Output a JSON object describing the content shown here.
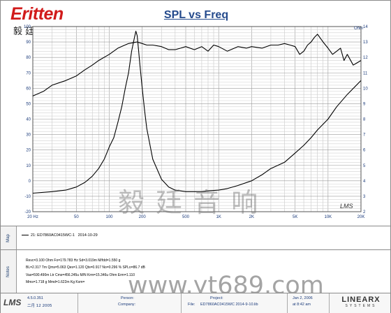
{
  "brand": {
    "logo_text": "ritten",
    "logo_initial": "E",
    "chinese_name": "毅 廷 音 响",
    "watermark_cn": "毅 廷 音 响",
    "watermark_url": "www.yt689.com"
  },
  "chart_data": {
    "type": "line",
    "title": "SPL vs Freq",
    "xlabel": "",
    "ylabel_left": "",
    "ylabel_right": "Ohm",
    "x_scale": "log",
    "xlim": [
      20,
      20000
    ],
    "ylim_left": [
      -20,
      100
    ],
    "ylim_right": [
      2,
      14
    ],
    "x_tick_labels": [
      "20 Hz",
      "50",
      "100",
      "200",
      "500",
      "1K",
      "2K",
      "5K",
      "10K",
      "20K"
    ],
    "x_tick_values": [
      20,
      50,
      100,
      200,
      500,
      1000,
      2000,
      5000,
      10000,
      20000
    ],
    "y_left_ticks": [
      -20,
      -10,
      0,
      10,
      20,
      30,
      40,
      50,
      60,
      70,
      80,
      90,
      100
    ],
    "y_right_ticks": [
      2,
      3,
      4,
      5,
      6,
      7,
      8,
      9,
      10,
      11,
      12,
      13,
      14
    ],
    "grid": true,
    "series": [
      {
        "axis": "left",
        "color": "#000000",
        "x": [
          20,
          25,
          30,
          40,
          50,
          60,
          70,
          80,
          100,
          120,
          150,
          180,
          200,
          220,
          250,
          300,
          350,
          400,
          450,
          500,
          600,
          700,
          800,
          900,
          1000,
          1200,
          1500,
          1800,
          2000,
          2500,
          3000,
          3500,
          4000,
          4500,
          5000,
          5500,
          6000,
          6500,
          7000,
          7500,
          8000,
          9000,
          10000,
          11000,
          12000,
          13000,
          14000,
          15000,
          17000,
          20000
        ],
        "y": [
          55,
          58,
          62,
          65,
          68,
          72,
          75,
          78,
          82,
          86,
          89,
          90,
          89,
          88,
          88,
          87,
          85,
          85,
          86,
          87,
          85,
          87,
          84,
          88,
          87,
          84,
          87,
          86,
          87,
          86,
          88,
          88,
          89,
          88,
          87,
          82,
          84,
          88,
          90,
          93,
          95,
          90,
          86,
          82,
          84,
          86,
          78,
          82,
          75,
          78
        ]
      },
      {
        "axis": "right",
        "color": "#000000",
        "x": [
          20,
          30,
          40,
          50,
          60,
          70,
          80,
          90,
          100,
          110,
          120,
          130,
          140,
          150,
          160,
          170,
          175,
          180,
          185,
          190,
          200,
          210,
          220,
          250,
          300,
          350,
          400,
          500,
          600,
          700,
          800,
          1000,
          1200,
          1500,
          2000,
          2500,
          3000,
          4000,
          5000,
          6000,
          7000,
          8000,
          10000,
          12000,
          15000,
          20000
        ],
        "y": [
          3.2,
          3.3,
          3.4,
          3.6,
          3.9,
          4.3,
          4.8,
          5.4,
          6.2,
          6.8,
          7.8,
          8.8,
          10.0,
          11.0,
          12.4,
          13.3,
          13.7,
          13.4,
          12.5,
          11.6,
          10.0,
          8.6,
          7.4,
          5.4,
          4.1,
          3.6,
          3.4,
          3.3,
          3.3,
          3.3,
          3.35,
          3.4,
          3.5,
          3.7,
          4.0,
          4.4,
          4.8,
          5.2,
          5.8,
          6.3,
          6.8,
          7.3,
          8.0,
          8.8,
          9.6,
          10.5
        ]
      }
    ],
    "annotation": "LMS"
  },
  "legend": {
    "entry": "21: ED7860AC0415WC-1",
    "date": "2014-10-29"
  },
  "side_labels": {
    "map": "Map",
    "notes": "Notes"
  },
  "notes": [
    "Revc=3.100 Ohm  Fo=179.783 Hz  Sd=3.019m M/fdd=1.550 g",
    "BL=2.317 Tm  Qms=5.063  Qes=1.120  Qts=0.917  No=0.296 %  SPLo=86.7 dB",
    "Vas=590.490m Ltr  Cms=456.245u M/N  Krm=15.346u Ohm  Erm=1.110",
    "Mms=1.718 g  Mmd=1.622m Kg  Kxm="
  ],
  "footer": {
    "version": "4.5.0.351",
    "build_date": "二月 12 2005",
    "person_label": "Person:",
    "company_label": "Company:",
    "person_value": "",
    "company_value": "",
    "project_label": "Project:",
    "file_label": "File:",
    "file_value": "ED7860AC0415WC  2014-9-10.lib",
    "date_value": "Jan 2, 2006",
    "time_value": "at 8:42 am",
    "lms_logo": "LMS",
    "linearx_logo": "LINEARX",
    "linearx_sub": "SYSTEMS"
  }
}
